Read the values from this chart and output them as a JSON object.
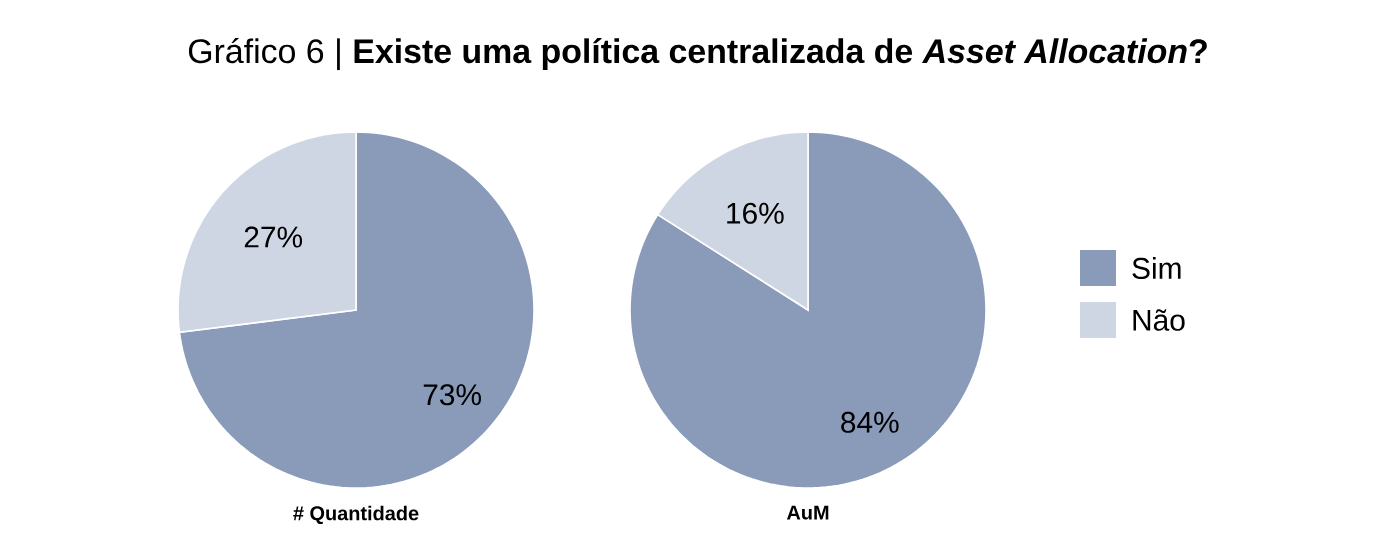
{
  "chart_data": [
    {
      "type": "pie",
      "title": "Gráfico 6 | **Existe uma política centralizada de *Asset Allocation*?**",
      "xlabel": "# Quantidade",
      "categories": [
        "Sim",
        "Não"
      ],
      "values": [
        73,
        27
      ],
      "colors": [
        "#8a9bba",
        "#cfd6e3"
      ],
      "value_labels": [
        "73%",
        "27%"
      ],
      "legend": "right"
    },
    {
      "type": "pie",
      "xlabel": "AuM",
      "categories": [
        null,
        null
      ],
      "values": [
        84,
        16
      ],
      "colors": [
        "#8a9bba",
        "#cfd6e3"
      ],
      "value_labels": [
        "84%",
        "16%"
      ]
    }
  ]
}
